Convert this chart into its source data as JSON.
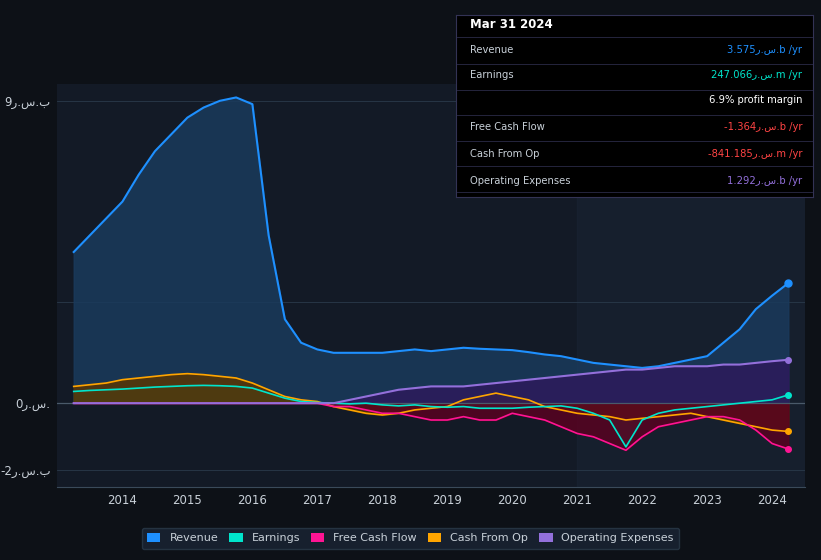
{
  "bg_color": "#0d1117",
  "plot_bg_color": "#131a26",
  "grid_color": "#2a3a4a",
  "text_color": "#c8d0d8",
  "title_color": "#ffffff",
  "years": [
    2013.25,
    2013.5,
    2013.75,
    2014.0,
    2014.25,
    2014.5,
    2014.75,
    2015.0,
    2015.25,
    2015.5,
    2015.75,
    2016.0,
    2016.25,
    2016.5,
    2016.75,
    2017.0,
    2017.25,
    2017.5,
    2017.75,
    2018.0,
    2018.25,
    2018.5,
    2018.75,
    2019.0,
    2019.25,
    2019.5,
    2019.75,
    2020.0,
    2020.25,
    2020.5,
    2020.75,
    2021.0,
    2021.25,
    2021.5,
    2021.75,
    2022.0,
    2022.25,
    2022.5,
    2022.75,
    2023.0,
    2023.25,
    2023.5,
    2023.75,
    2024.0,
    2024.25
  ],
  "revenue": [
    4.5,
    5.0,
    5.5,
    6.0,
    6.8,
    7.5,
    8.0,
    8.5,
    8.8,
    9.0,
    9.1,
    8.9,
    5.0,
    2.5,
    1.8,
    1.6,
    1.5,
    1.5,
    1.5,
    1.5,
    1.55,
    1.6,
    1.55,
    1.6,
    1.65,
    1.62,
    1.6,
    1.58,
    1.52,
    1.45,
    1.4,
    1.3,
    1.2,
    1.15,
    1.1,
    1.05,
    1.1,
    1.2,
    1.3,
    1.4,
    1.8,
    2.2,
    2.8,
    3.2,
    3.575
  ],
  "earnings": [
    0.35,
    0.38,
    0.4,
    0.42,
    0.45,
    0.48,
    0.5,
    0.52,
    0.53,
    0.52,
    0.5,
    0.45,
    0.3,
    0.15,
    0.05,
    0.02,
    0.0,
    -0.02,
    0.0,
    -0.05,
    -0.08,
    -0.05,
    -0.1,
    -0.12,
    -0.1,
    -0.15,
    -0.15,
    -0.15,
    -0.12,
    -0.1,
    -0.08,
    -0.15,
    -0.3,
    -0.5,
    -1.3,
    -0.5,
    -0.3,
    -0.2,
    -0.15,
    -0.1,
    -0.05,
    0.0,
    0.05,
    0.1,
    0.247
  ],
  "free_cash_flow": [
    0.0,
    0.0,
    0.0,
    0.0,
    0.0,
    0.0,
    0.0,
    0.0,
    0.0,
    0.0,
    0.0,
    0.0,
    0.0,
    0.0,
    0.0,
    0.0,
    -0.1,
    -0.1,
    -0.2,
    -0.3,
    -0.3,
    -0.4,
    -0.5,
    -0.5,
    -0.4,
    -0.5,
    -0.5,
    -0.3,
    -0.4,
    -0.5,
    -0.7,
    -0.9,
    -1.0,
    -1.2,
    -1.4,
    -1.0,
    -0.7,
    -0.6,
    -0.5,
    -0.4,
    -0.4,
    -0.5,
    -0.8,
    -1.2,
    -1.364
  ],
  "cash_from_op": [
    0.5,
    0.55,
    0.6,
    0.7,
    0.75,
    0.8,
    0.85,
    0.88,
    0.85,
    0.8,
    0.75,
    0.6,
    0.4,
    0.2,
    0.1,
    0.05,
    -0.1,
    -0.2,
    -0.3,
    -0.35,
    -0.3,
    -0.2,
    -0.15,
    -0.1,
    0.1,
    0.2,
    0.3,
    0.2,
    0.1,
    -0.1,
    -0.2,
    -0.3,
    -0.35,
    -0.4,
    -0.5,
    -0.45,
    -0.4,
    -0.35,
    -0.3,
    -0.4,
    -0.5,
    -0.6,
    -0.7,
    -0.8,
    -0.841
  ],
  "operating_expenses": [
    0.0,
    0.0,
    0.0,
    0.0,
    0.0,
    0.0,
    0.0,
    0.0,
    0.0,
    0.0,
    0.0,
    0.0,
    0.0,
    0.0,
    0.0,
    0.0,
    0.0,
    0.1,
    0.2,
    0.3,
    0.4,
    0.45,
    0.5,
    0.5,
    0.5,
    0.55,
    0.6,
    0.65,
    0.7,
    0.75,
    0.8,
    0.85,
    0.9,
    0.95,
    1.0,
    1.0,
    1.05,
    1.1,
    1.1,
    1.1,
    1.15,
    1.15,
    1.2,
    1.25,
    1.292
  ],
  "revenue_color": "#1e90ff",
  "earnings_color": "#00e5cc",
  "free_cash_flow_color": "#ff1493",
  "cash_from_op_color": "#ffa500",
  "operating_expenses_color": "#9370db",
  "revenue_fill_color": "#1a3a5c",
  "earnings_fill_color": "#1a5c50",
  "free_cash_flow_fill_color": "#5c0020",
  "cash_from_op_fill_color": "#5c3500",
  "operating_expenses_fill_color": "#2d1a5c",
  "ylim": [
    -2.5,
    9.5
  ],
  "xlim": [
    2013.0,
    2024.5
  ],
  "xtick_labels": [
    "2014",
    "2015",
    "2016",
    "2017",
    "2018",
    "2019",
    "2020",
    "2021",
    "2022",
    "2023",
    "2024"
  ],
  "xtick_positions": [
    2014,
    2015,
    2016,
    2017,
    2018,
    2019,
    2020,
    2021,
    2022,
    2023,
    2024
  ],
  "legend_items": [
    {
      "label": "Revenue",
      "color": "#1e90ff"
    },
    {
      "label": "Earnings",
      "color": "#00e5cc"
    },
    {
      "label": "Free Cash Flow",
      "color": "#ff1493"
    },
    {
      "label": "Cash From Op",
      "color": "#ffa500"
    },
    {
      "label": "Operating Expenses",
      "color": "#9370db"
    }
  ],
  "info_title": "Mar 31 2024",
  "info_rows": [
    {
      "label": "Revenue",
      "value": "3.575ر.س.b /yr",
      "color": "#1e90ff"
    },
    {
      "label": "Earnings",
      "value": "247.066ر.س.m /yr",
      "color": "#00e5cc"
    },
    {
      "label": "",
      "value": "6.9% profit margin",
      "color": "#ffffff"
    },
    {
      "label": "Free Cash Flow",
      "value": "-1.364ر.س.b /yr",
      "color": "#ff4444"
    },
    {
      "label": "Cash From Op",
      "value": "-841.185ر.س.m /yr",
      "color": "#ff4444"
    },
    {
      "label": "Operating Expenses",
      "value": "1.292ر.س.b /yr",
      "color": "#9370db"
    }
  ],
  "shaded_region_x1": 2021.0,
  "shaded_region_x2": 2024.5
}
